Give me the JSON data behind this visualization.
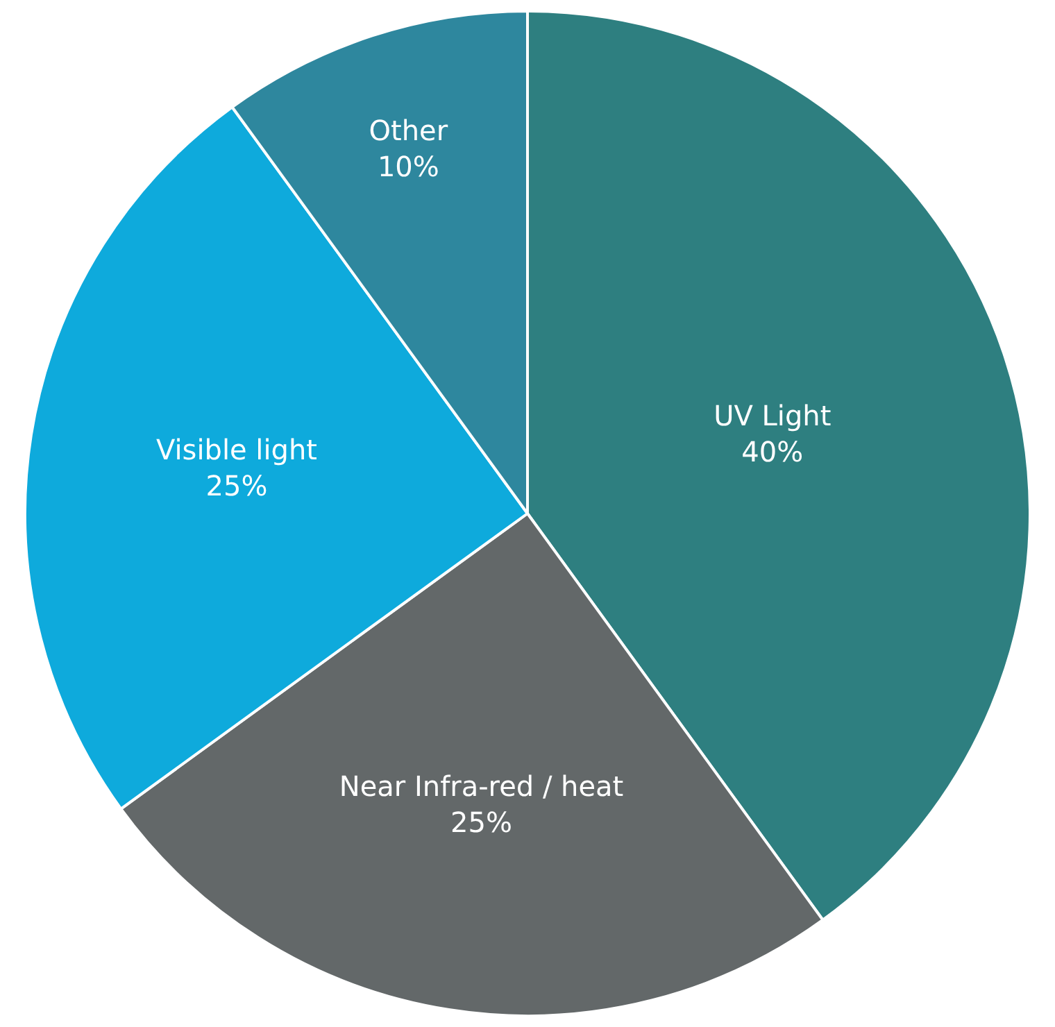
{
  "chart_data": {
    "type": "pie",
    "categories": [
      "UV Light",
      "Near Infra-red / heat",
      "Visible light",
      "Other"
    ],
    "values": [
      40,
      25,
      25,
      10
    ],
    "value_labels": [
      "40%",
      "25%",
      "25%",
      "10%"
    ],
    "colors": [
      "#2e7f80",
      "#636869",
      "#0eaadc",
      "#2e879e"
    ],
    "legend": false
  }
}
